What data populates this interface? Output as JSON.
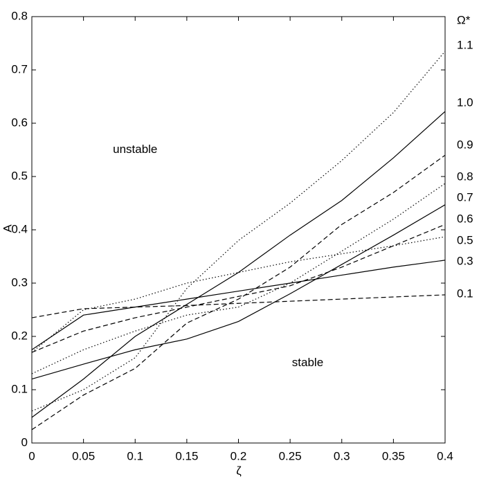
{
  "chart_data": {
    "type": "line",
    "xlabel": "ζ",
    "ylabel": "A",
    "legend_title": "Ω*",
    "x": [
      0,
      0.05,
      0.1,
      0.15,
      0.2,
      0.25,
      0.3,
      0.35,
      0.4
    ],
    "series": [
      {
        "name": "1.1",
        "color": "#000",
        "dash": "dotted",
        "values": [
          0.06,
          0.1,
          0.16,
          0.29,
          0.38,
          0.45,
          0.53,
          0.62,
          0.735
        ]
      },
      {
        "name": "1.0",
        "color": "#000",
        "dash": "solid",
        "values": [
          0.048,
          0.12,
          0.2,
          0.26,
          0.32,
          0.39,
          0.455,
          0.535,
          0.622
        ]
      },
      {
        "name": "0.9",
        "color": "#000",
        "dash": "dashed",
        "values": [
          0.025,
          0.09,
          0.14,
          0.225,
          0.27,
          0.33,
          0.41,
          0.47,
          0.54
        ]
      },
      {
        "name": "0.8",
        "color": "#000",
        "dash": "dotted",
        "values": [
          0.13,
          0.175,
          0.21,
          0.24,
          0.255,
          0.3,
          0.36,
          0.42,
          0.487
        ]
      },
      {
        "name": "0.7",
        "color": "#000",
        "dash": "solid",
        "values": [
          0.12,
          0.148,
          0.175,
          0.195,
          0.228,
          0.28,
          0.335,
          0.39,
          0.447
        ]
      },
      {
        "name": "0.6",
        "color": "#000",
        "dash": "dashed",
        "values": [
          0.17,
          0.21,
          0.235,
          0.255,
          0.275,
          0.295,
          0.33,
          0.37,
          0.41
        ]
      },
      {
        "name": "0.5",
        "color": "#000",
        "dash": "dotted",
        "values": [
          0.17,
          0.25,
          0.27,
          0.3,
          0.32,
          0.34,
          0.355,
          0.37,
          0.387
        ]
      },
      {
        "name": "0.3",
        "color": "#000",
        "dash": "solid",
        "values": [
          0.175,
          0.24,
          0.255,
          0.27,
          0.285,
          0.3,
          0.315,
          0.33,
          0.343
        ]
      },
      {
        "name": "0.1",
        "color": "#000",
        "dash": "dashed",
        "values": [
          0.235,
          0.252,
          0.255,
          0.258,
          0.262,
          0.266,
          0.27,
          0.274,
          0.278
        ]
      }
    ],
    "annotations": [
      {
        "text": "unstable",
        "x": 0.1,
        "y": 0.55
      },
      {
        "text": "stable",
        "x": 0.267,
        "y": 0.15
      }
    ],
    "xlim": [
      0,
      0.4
    ],
    "ylim": [
      0,
      0.8
    ],
    "xticks": [
      0,
      0.05,
      0.1,
      0.15,
      0.2,
      0.25,
      0.3,
      0.35,
      0.4
    ],
    "yticks": [
      0,
      0.1,
      0.2,
      0.3,
      0.4,
      0.5,
      0.6,
      0.7,
      0.8
    ],
    "grid": false
  }
}
